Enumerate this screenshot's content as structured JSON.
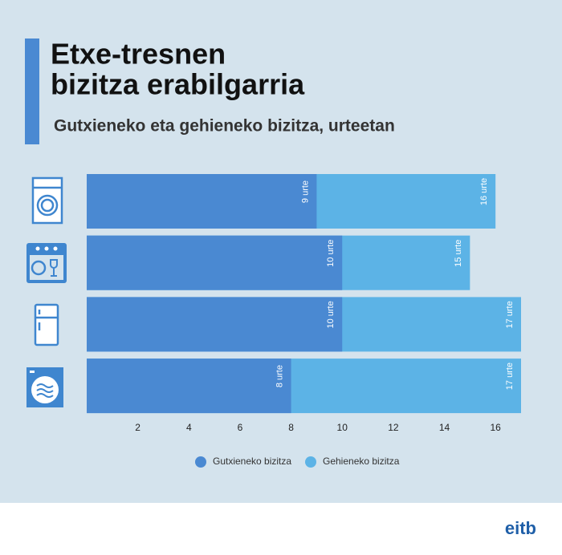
{
  "chart_data": {
    "type": "bar",
    "title": [
      "Etxe-tresnen",
      "bizitza erabilgarria"
    ],
    "subtitle": "Gutxieneko eta gehieneko bizitza, urteetan",
    "orientation": "horizontal",
    "categories": [
      null,
      null,
      null,
      null
    ],
    "series": [
      {
        "name": "Gehieneko bizitza",
        "color": "#5cb3e6",
        "values": [
          16,
          15,
          17,
          17
        ],
        "value_labels": [
          "16 urte",
          "15 urte",
          "17 urte",
          "17 urte"
        ]
      },
      {
        "name": "Gutxieneko bizitza",
        "color": "#4a89d2",
        "values": [
          9,
          10,
          10,
          8
        ],
        "value_labels": [
          "9 urte",
          "10 urte",
          "10 urte",
          "8 urte"
        ]
      }
    ],
    "legend_order": [
      1,
      0
    ],
    "xlim": [
      0,
      17
    ],
    "xticks": [
      2,
      4,
      6,
      8,
      10,
      12,
      14,
      16
    ],
    "grid": false
  },
  "brand": "eitb"
}
